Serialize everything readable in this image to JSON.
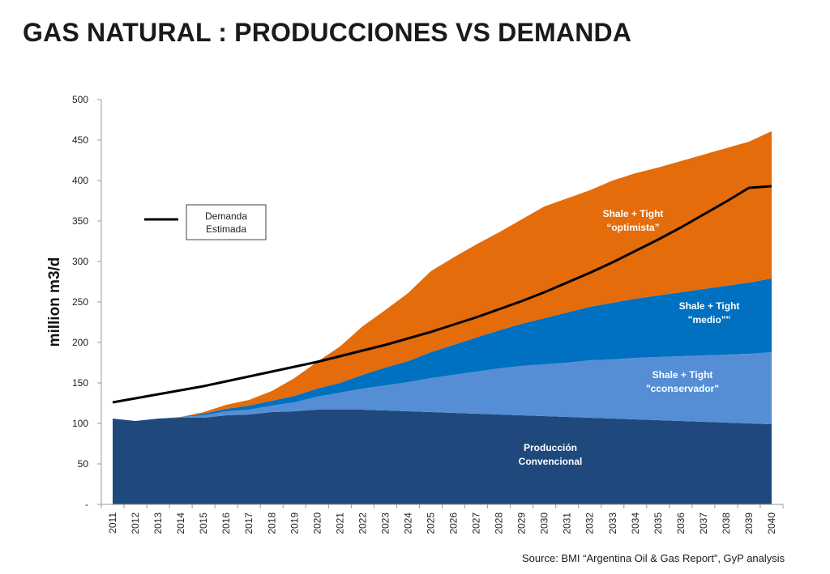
{
  "header": {
    "title": "GAS NATURAL : PRODUCCIONES VS DEMANDA"
  },
  "footer": {
    "source": "Source: BMI “Argentina Oil & Gas Report”, GyP analysis"
  },
  "chart_data": {
    "type": "area",
    "stacked": true,
    "title": "GAS NATURAL : PRODUCCIONES VS DEMANDA",
    "xlabel": "",
    "ylabel": "million m3/d",
    "ylim": [
      0,
      500
    ],
    "yticks": [
      0,
      50,
      100,
      150,
      200,
      250,
      300,
      350,
      400,
      450,
      500
    ],
    "ytick_labels": [
      "-",
      "50",
      "100",
      "150",
      "200",
      "250",
      "300",
      "350",
      "400",
      "450",
      "500"
    ],
    "grid": false,
    "x": [
      "2011",
      "2012",
      "2013",
      "2014",
      "2015",
      "2016",
      "2017",
      "2018",
      "2019",
      "2020",
      "2021",
      "2022",
      "2023",
      "2024",
      "2025",
      "2026",
      "2027",
      "2028",
      "2029",
      "2030",
      "2031",
      "2032",
      "2033",
      "2034",
      "2035",
      "2036",
      "2037",
      "2038",
      "2039",
      "2040"
    ],
    "series": [
      {
        "label": [
          "Producción",
          "Convencional"
        ],
        "color": "#1f497d",
        "values": [
          106,
          103,
          106,
          107,
          107,
          110,
          111,
          114,
          115,
          117,
          117,
          117,
          116,
          115,
          114,
          113,
          112,
          111,
          110,
          109,
          108,
          107,
          106,
          105,
          104,
          103,
          102,
          101,
          100,
          99
        ]
      },
      {
        "label": [
          "Shale + Tight",
          "\"cconservador\""
        ],
        "color": "#558ed5",
        "values": [
          0,
          0,
          0,
          1,
          3,
          5,
          6,
          8,
          11,
          16,
          21,
          26,
          31,
          36,
          42,
          47,
          52,
          57,
          61,
          64,
          67,
          71,
          73,
          76,
          78,
          80,
          82,
          84,
          86,
          89
        ]
      },
      {
        "label": [
          "Shale + Tight",
          "\"medio\"\""
        ],
        "color": "#0070c0",
        "values": [
          0,
          0,
          0,
          0,
          2,
          3,
          5,
          6,
          8,
          10,
          12,
          17,
          22,
          26,
          32,
          37,
          42,
          47,
          52,
          57,
          62,
          66,
          70,
          73,
          76,
          79,
          82,
          85,
          88,
          91
        ]
      },
      {
        "label": [
          "Shale + Tight",
          "“optimista”"
        ],
        "color": "#e46c0a",
        "values": [
          0,
          0,
          0,
          0,
          2,
          5,
          7,
          12,
          22,
          33,
          45,
          60,
          71,
          84,
          100,
          108,
          115,
          121,
          129,
          138,
          141,
          144,
          151,
          155,
          158,
          162,
          166,
          170,
          174,
          182
        ]
      }
    ],
    "line": {
      "name": "Demanda Estimada",
      "legend": [
        "Demanda",
        "Estimada"
      ],
      "color": "#000000",
      "values": [
        126,
        131,
        136,
        141,
        146,
        152,
        158,
        164,
        170,
        176,
        183,
        190,
        197,
        205,
        213,
        222,
        231,
        241,
        251,
        262,
        274,
        286,
        299,
        313,
        327,
        342,
        358,
        374,
        391,
        393
      ]
    },
    "legend": "upper-left"
  }
}
